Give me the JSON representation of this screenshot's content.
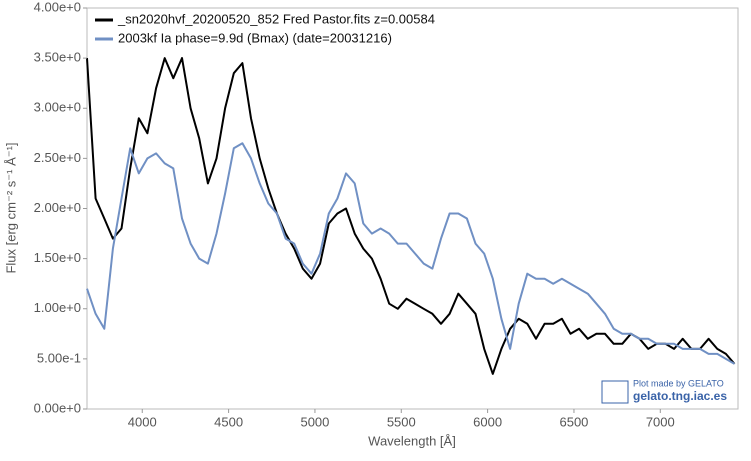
{
  "chart_data": {
    "type": "line",
    "xlabel": "Wavelength [Å]",
    "ylabel": "Flux [erg cm⁻² s⁻¹ Å⁻¹]",
    "xlim": [
      3680,
      7450
    ],
    "ylim": [
      0,
      4
    ],
    "xticks": [
      4000,
      4500,
      5000,
      5500,
      6000,
      6500,
      7000
    ],
    "yticks": [
      {
        "value": 0,
        "label": "0.00e+0"
      },
      {
        "value": 0.5,
        "label": "5.00e-1"
      },
      {
        "value": 1,
        "label": "1.00e+0"
      },
      {
        "value": 1.5,
        "label": "1.50e+0"
      },
      {
        "value": 2,
        "label": "2.00e+0"
      },
      {
        "value": 2.5,
        "label": "2.50e+0"
      },
      {
        "value": 3,
        "label": "3.00e+0"
      },
      {
        "value": 3.5,
        "label": "3.50e+0"
      },
      {
        "value": 4,
        "label": "4.00e+0"
      }
    ],
    "legend": "upper left",
    "annotations": [
      "Plot made by GELATO",
      "gelato.tng.iac.es"
    ],
    "x": [
      3680,
      3730,
      3780,
      3830,
      3880,
      3930,
      3980,
      4030,
      4080,
      4130,
      4180,
      4230,
      4280,
      4330,
      4380,
      4430,
      4480,
      4530,
      4580,
      4630,
      4680,
      4730,
      4780,
      4830,
      4880,
      4930,
      4980,
      5030,
      5080,
      5130,
      5180,
      5230,
      5280,
      5330,
      5380,
      5430,
      5480,
      5530,
      5580,
      5630,
      5680,
      5730,
      5780,
      5830,
      5880,
      5930,
      5980,
      6030,
      6080,
      6130,
      6180,
      6230,
      6280,
      6330,
      6380,
      6430,
      6480,
      6530,
      6580,
      6630,
      6680,
      6730,
      6780,
      6830,
      6880,
      6930,
      6980,
      7030,
      7080,
      7130,
      7180,
      7230,
      7280,
      7330,
      7380,
      7430
    ],
    "series": [
      {
        "name": "_sn2020hvf_20200520_852 Fred Pastor.fits  z=0.00584",
        "color": "#000000",
        "values": [
          3.5,
          2.1,
          1.9,
          1.7,
          1.8,
          2.4,
          2.9,
          2.75,
          3.2,
          3.5,
          3.3,
          3.5,
          3.0,
          2.7,
          2.25,
          2.5,
          3.0,
          3.35,
          3.45,
          2.9,
          2.5,
          2.2,
          1.95,
          1.75,
          1.6,
          1.4,
          1.3,
          1.45,
          1.85,
          1.95,
          2.0,
          1.75,
          1.6,
          1.5,
          1.3,
          1.05,
          1.0,
          1.1,
          1.05,
          1.0,
          0.95,
          0.85,
          0.95,
          1.15,
          1.05,
          0.95,
          0.6,
          0.35,
          0.6,
          0.8,
          0.9,
          0.85,
          0.7,
          0.85,
          0.85,
          0.9,
          0.75,
          0.8,
          0.7,
          0.75,
          0.75,
          0.65,
          0.65,
          0.75,
          0.7,
          0.6,
          0.65,
          0.65,
          0.6,
          0.7,
          0.6,
          0.6,
          0.7,
          0.6,
          0.55,
          0.45
        ]
      },
      {
        "name": "2003kf  Ia  phase=9.9d (Bmax)  (date=20031216)",
        "color": "#7090c4",
        "values": [
          1.2,
          0.95,
          0.8,
          1.6,
          2.1,
          2.6,
          2.35,
          2.5,
          2.55,
          2.45,
          2.4,
          1.9,
          1.65,
          1.5,
          1.45,
          1.75,
          2.15,
          2.6,
          2.65,
          2.5,
          2.25,
          2.05,
          1.95,
          1.7,
          1.65,
          1.45,
          1.35,
          1.55,
          1.95,
          2.1,
          2.35,
          2.25,
          1.85,
          1.75,
          1.8,
          1.75,
          1.65,
          1.65,
          1.55,
          1.45,
          1.4,
          1.7,
          1.95,
          1.95,
          1.9,
          1.65,
          1.55,
          1.3,
          0.9,
          0.6,
          1.05,
          1.35,
          1.3,
          1.3,
          1.25,
          1.3,
          1.25,
          1.2,
          1.15,
          1.05,
          0.95,
          0.8,
          0.75,
          0.75,
          0.7,
          0.7,
          0.65,
          0.65,
          0.65,
          0.6,
          0.6,
          0.6,
          0.55,
          0.55,
          0.5,
          0.45
        ]
      }
    ]
  }
}
